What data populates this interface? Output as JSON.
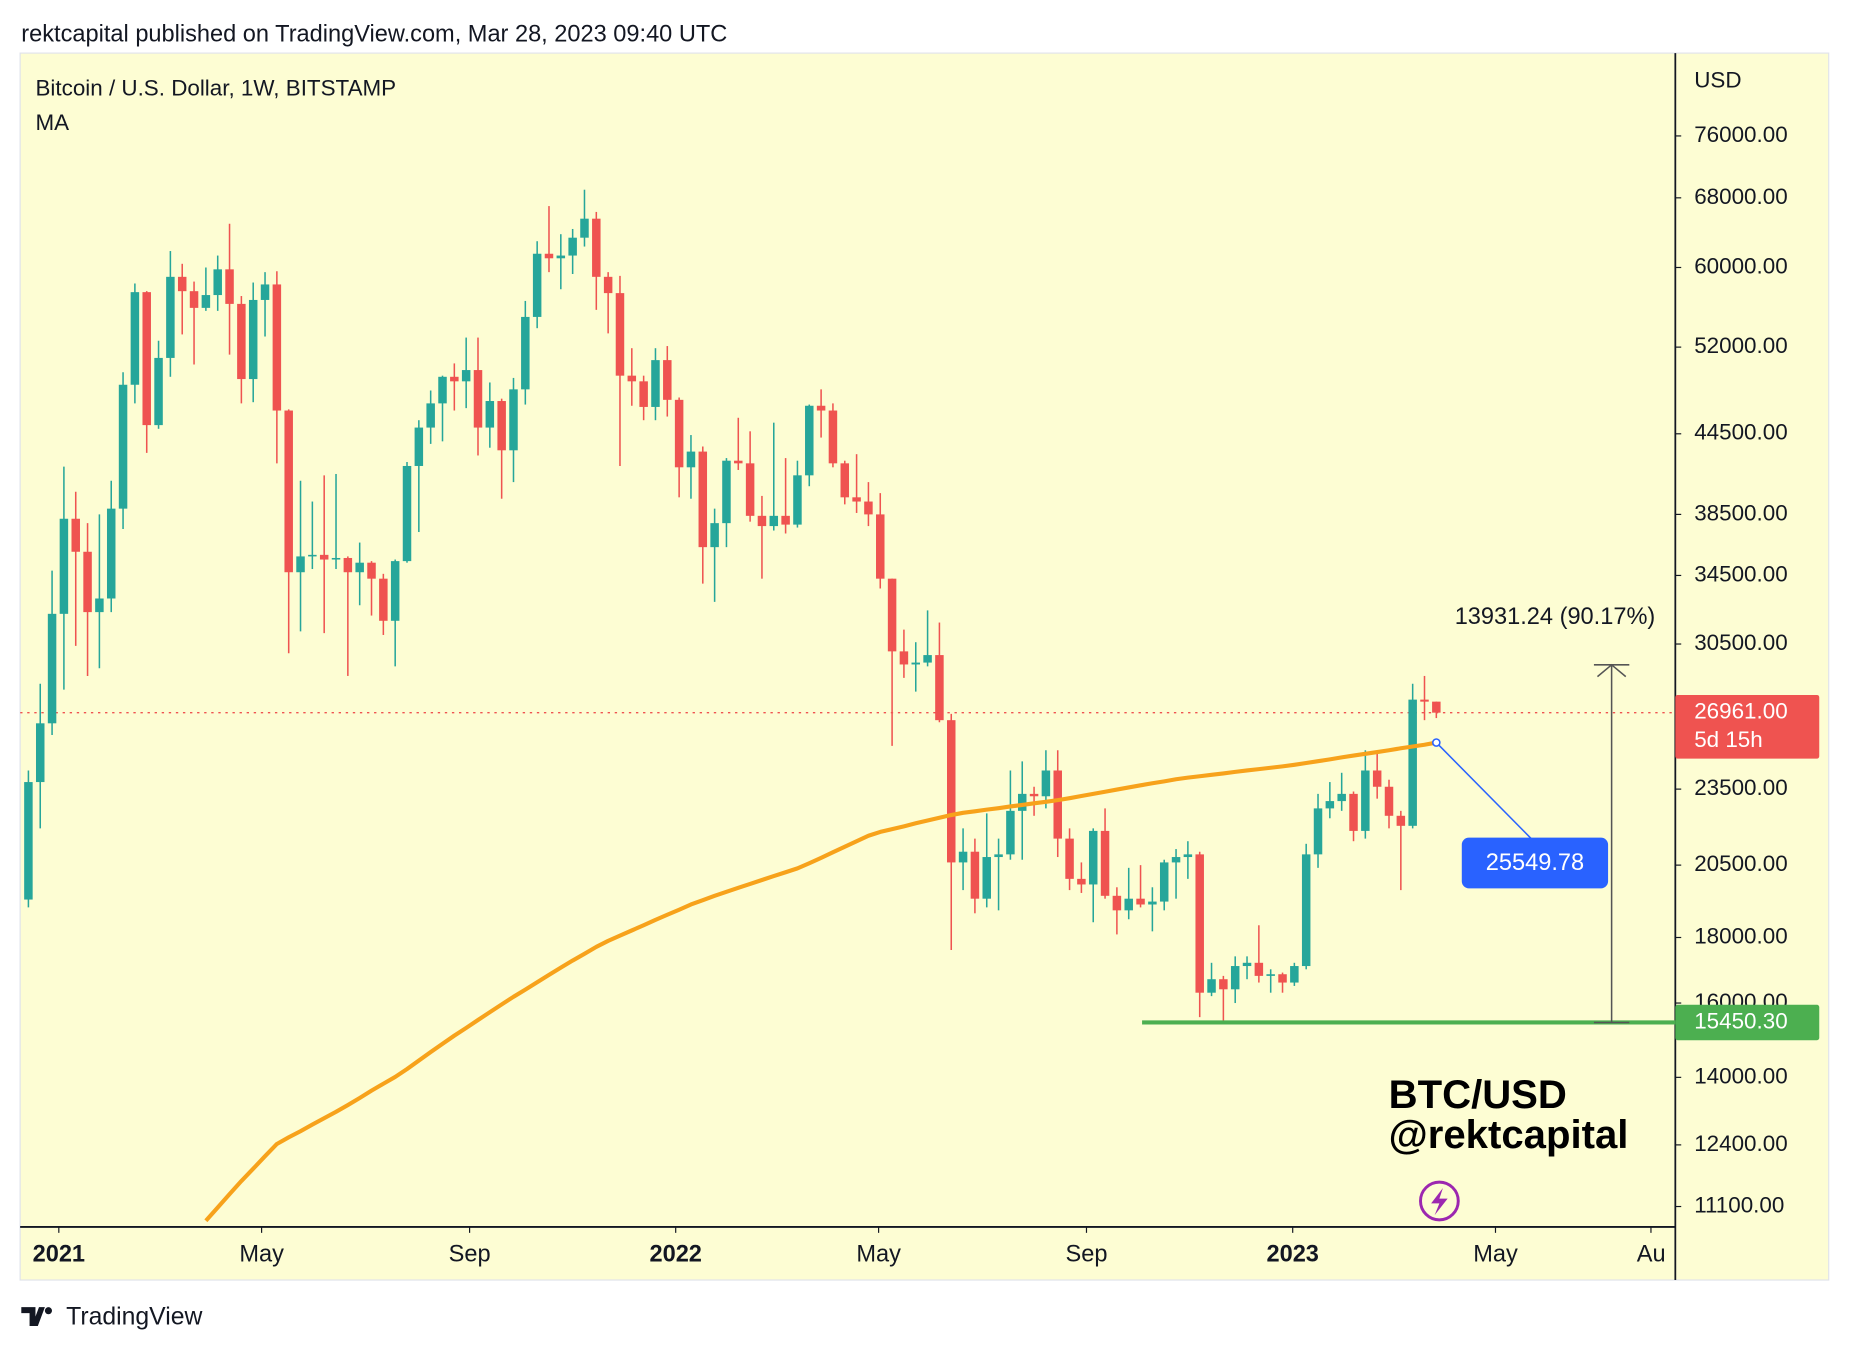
{
  "header": "rektcapital published on TradingView.com, Mar 28, 2023 09:40 UTC",
  "footer": "TradingView",
  "chart_data": {
    "type": "candlestick",
    "y_label": "USD",
    "log_scale": true,
    "background": "#fdfdd3",
    "ylim": [
      10700,
      88200
    ],
    "yticks": [
      {
        "value": 76000,
        "label": "76000.00"
      },
      {
        "value": 68000,
        "label": "68000.00"
      },
      {
        "value": 60000,
        "label": "60000.00"
      },
      {
        "value": 52000,
        "label": "52000.00"
      },
      {
        "value": 44500,
        "label": "44500.00"
      },
      {
        "value": 38500,
        "label": "38500.00"
      },
      {
        "value": 34500,
        "label": "34500.00"
      },
      {
        "value": 30500,
        "label": "30500.00"
      },
      {
        "value": 23500,
        "label": "23500.00"
      },
      {
        "value": 20500,
        "label": "20500.00"
      },
      {
        "value": 18000,
        "label": "18000.00"
      },
      {
        "value": 16000,
        "label": "16000.00"
      },
      {
        "value": 14000,
        "label": "14000.00"
      },
      {
        "value": 12400,
        "label": "12400.00"
      },
      {
        "value": 11100,
        "label": "11100.00"
      }
    ],
    "xlim": [
      -0.7,
      139.2
    ],
    "xticks": [
      {
        "value": 2.57,
        "label": "2021"
      },
      {
        "value": 19.71,
        "label": "May"
      },
      {
        "value": 37.29,
        "label": "Sep"
      },
      {
        "value": 54.71,
        "label": "2022"
      },
      {
        "value": 71.86,
        "label": "May"
      },
      {
        "value": 89.43,
        "label": "Sep"
      },
      {
        "value": 106.86,
        "label": "2023"
      },
      {
        "value": 124.0,
        "label": "May"
      },
      {
        "value": 137.14,
        "label": "Au"
      }
    ],
    "series": [
      {
        "name": "Bitcoin / U.S. Dollar, 1W, BITSTAMP",
        "up_color": "#26a69a",
        "down_color": "#ef5350",
        "open": [
          19270,
          23800,
          26450,
          32200,
          38200,
          36000,
          32300,
          33100,
          38900,
          48600,
          57400,
          45200,
          51000,
          59000,
          57500,
          55800,
          57100,
          59800,
          56200,
          49100,
          56600,
          58200,
          46400,
          34700,
          35700,
          35800,
          35500,
          35600,
          34700,
          35300,
          34300,
          31800,
          35400,
          42000,
          45000,
          47000,
          49300,
          48900,
          49900,
          45000,
          47200,
          43200,
          48200,
          54900,
          61500,
          61000,
          61300,
          63300,
          65500,
          59000,
          57300,
          49400,
          48900,
          46700,
          50800,
          47300,
          41900,
          43100,
          36300,
          37900,
          42400,
          42200,
          38400,
          37700,
          38400,
          37800,
          41300,
          46800,
          46400,
          42200,
          39700,
          39400,
          38500,
          34300,
          30100,
          29400,
          29500,
          29900,
          26600,
          20600,
          21000,
          19300,
          20800,
          20900,
          22600,
          23300,
          23200,
          24300,
          21500,
          20000,
          19800,
          21800,
          19400,
          18900,
          19300,
          19100,
          19200,
          20600,
          20800,
          20900,
          16300,
          16700,
          16400,
          17100,
          17200,
          16800,
          16850,
          16600,
          17100,
          20900,
          22700,
          23000,
          23300,
          21800,
          24300,
          23600,
          22400,
          22000,
          27600,
          27500
        ],
        "high": [
          24300,
          28400,
          34800,
          41950,
          40100,
          37900,
          38500,
          40900,
          49700,
          58300,
          57500,
          52600,
          61800,
          60400,
          58500,
          60000,
          61300,
          64900,
          57000,
          58400,
          59500,
          59600,
          46500,
          40900,
          39400,
          41300,
          41400,
          35700,
          36600,
          35400,
          34600,
          35500,
          42300,
          45600,
          48100,
          49400,
          50500,
          52900,
          52900,
          48800,
          47400,
          49200,
          56500,
          62900,
          67000,
          63700,
          64300,
          69000,
          66300,
          59500,
          59100,
          51900,
          49400,
          51900,
          52100,
          47500,
          44400,
          43500,
          38900,
          42600,
          45800,
          44700,
          39800,
          45400,
          42600,
          42400,
          46900,
          48200,
          47000,
          42400,
          42900,
          40800,
          40000,
          34300,
          31300,
          30600,
          32400,
          31700,
          26900,
          21900,
          21500,
          22500,
          21500,
          24300,
          24700,
          23600,
          25200,
          25200,
          21900,
          20600,
          21900,
          22700,
          19700,
          20400,
          20500,
          19700,
          20700,
          21100,
          21400,
          21000,
          17200,
          16800,
          17400,
          17400,
          18400,
          17000,
          16900,
          17200,
          21300,
          23300,
          23800,
          24200,
          23400,
          25200,
          25100,
          23900,
          22600,
          28400,
          28800,
          27500
        ],
        "low": [
          19000,
          21900,
          25900,
          28100,
          30400,
          28800,
          29200,
          32300,
          37500,
          47000,
          43000,
          44900,
          49300,
          53200,
          50400,
          55500,
          55500,
          51300,
          47000,
          47100,
          53000,
          42200,
          30000,
          31200,
          34900,
          31100,
          34900,
          28800,
          32700,
          32100,
          31000,
          29300,
          35300,
          37300,
          43700,
          43900,
          46400,
          46600,
          42800,
          43400,
          39600,
          40800,
          46900,
          53800,
          59500,
          57700,
          59300,
          62300,
          55600,
          53300,
          42000,
          46800,
          45600,
          45600,
          45900,
          39700,
          39600,
          34000,
          32900,
          36300,
          41700,
          38000,
          34300,
          37400,
          37200,
          37600,
          40500,
          44200,
          41900,
          39200,
          38600,
          37700,
          33700,
          25400,
          28700,
          28000,
          29300,
          26500,
          17600,
          19600,
          18800,
          19000,
          18900,
          20700,
          20700,
          22400,
          22700,
          20800,
          19600,
          19500,
          18500,
          19300,
          18100,
          18600,
          19000,
          18200,
          18900,
          19300,
          20000,
          15600,
          16200,
          15480,
          16000,
          16700,
          16600,
          16300,
          16300,
          16500,
          17000,
          20400,
          22300,
          22600,
          21400,
          21500,
          23100,
          21900,
          19600,
          21900,
          26600,
          26700
        ],
        "close": [
          23800,
          26450,
          32200,
          38200,
          36000,
          32300,
          33100,
          38900,
          48600,
          57400,
          45200,
          51000,
          59000,
          57500,
          55800,
          57100,
          59800,
          56200,
          49100,
          56600,
          58200,
          46400,
          34700,
          35700,
          35800,
          35500,
          35600,
          34700,
          35300,
          34300,
          31800,
          35400,
          42000,
          45000,
          47000,
          49300,
          48900,
          49900,
          45000,
          47200,
          43200,
          48200,
          54900,
          61500,
          61000,
          61300,
          63300,
          65500,
          59000,
          57300,
          49400,
          48900,
          46700,
          50800,
          47300,
          41900,
          43100,
          36300,
          37900,
          42400,
          42200,
          38400,
          37700,
          38400,
          37800,
          41300,
          46800,
          46400,
          42200,
          39700,
          39400,
          38500,
          34300,
          30100,
          29400,
          29500,
          29900,
          26600,
          20600,
          21000,
          19300,
          20800,
          20900,
          22600,
          23300,
          23200,
          24300,
          21500,
          20000,
          19800,
          21800,
          19400,
          18900,
          19300,
          19100,
          19200,
          20600,
          20800,
          20900,
          16300,
          16700,
          16400,
          17100,
          17200,
          16800,
          16850,
          16600,
          17100,
          20900,
          22700,
          23000,
          23300,
          21800,
          24300,
          23600,
          22400,
          22000,
          27600,
          27500,
          26961
        ]
      },
      {
        "name": "MA",
        "type": "line",
        "color": "#f7a21b",
        "values": [
          null,
          null,
          null,
          null,
          null,
          null,
          null,
          null,
          null,
          null,
          null,
          null,
          null,
          null,
          null,
          10820,
          11080,
          11350,
          11620,
          11880,
          12150,
          12420,
          12570,
          12710,
          12860,
          13010,
          13160,
          13320,
          13490,
          13670,
          13840,
          14010,
          14210,
          14430,
          14650,
          14870,
          15090,
          15300,
          15520,
          15740,
          15960,
          16180,
          16390,
          16610,
          16830,
          17050,
          17270,
          17480,
          17700,
          17890,
          18060,
          18230,
          18400,
          18580,
          18750,
          18920,
          19100,
          19250,
          19400,
          19540,
          19680,
          19820,
          19960,
          20100,
          20240,
          20380,
          20570,
          20770,
          20980,
          21190,
          21400,
          21610,
          21760,
          21870,
          21980,
          22100,
          22210,
          22320,
          22430,
          22520,
          22580,
          22650,
          22710,
          22780,
          22840,
          22910,
          22970,
          23040,
          23120,
          23210,
          23300,
          23390,
          23480,
          23570,
          23660,
          23750,
          23830,
          23920,
          23990,
          24050,
          24110,
          24170,
          24240,
          24300,
          24360,
          24420,
          24480,
          24550,
          24630,
          24710,
          24790,
          24880,
          24960,
          25040,
          25120,
          25200,
          25290,
          25370,
          25450,
          25549.78
        ]
      }
    ],
    "ma_label_color": "#2962ff",
    "last_price": {
      "value": 26961,
      "label": "26961.00",
      "countdown": "5d 15h",
      "color": "#ef5350"
    },
    "support": {
      "value": 15450.3,
      "label": "15450.30",
      "color": "#4caf50"
    },
    "measure": {
      "value": 13931.24,
      "label": "13931.24 (90.17%)"
    },
    "watermark": [
      "BTC/USD",
      "@rektcapital"
    ]
  }
}
